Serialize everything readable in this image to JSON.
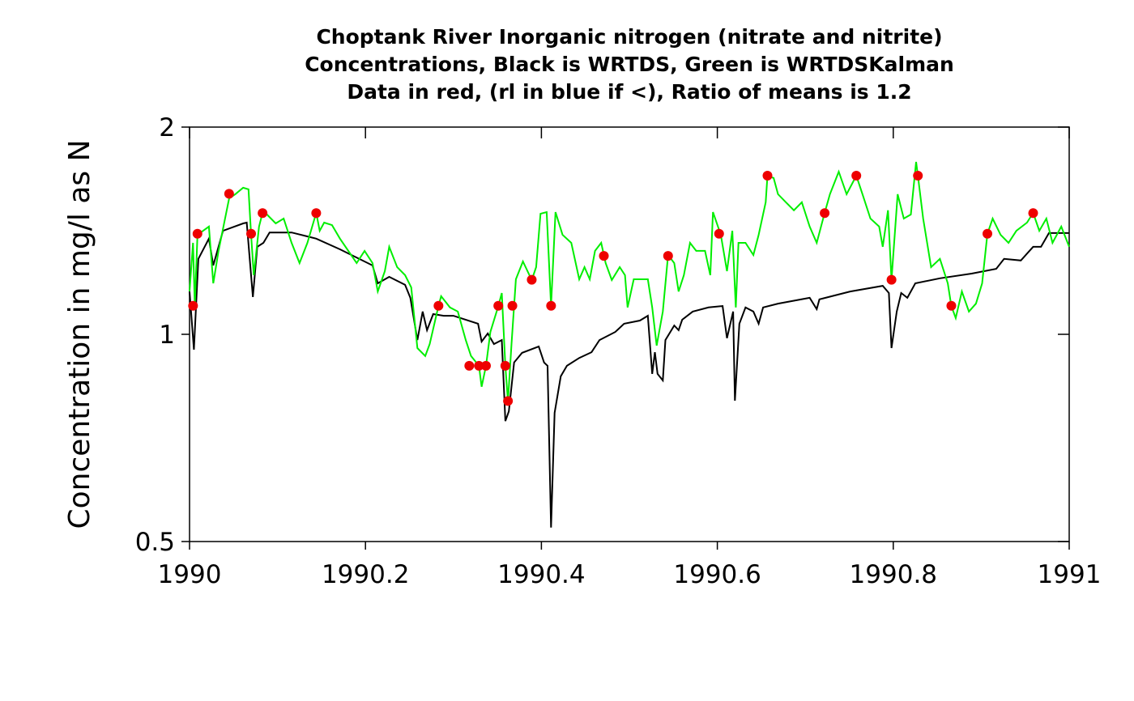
{
  "chart_data": {
    "type": "line",
    "title": [
      "Choptank River Inorganic nitrogen (nitrate and nitrite)",
      "Concentrations, Black is WRTDS, Green is WRTDSKalman",
      "Data in red, (rl in blue if <), Ratio of means is 1.2"
    ],
    "y_label": "Concentration in mg/l as N",
    "xlim": [
      1990,
      1991
    ],
    "xticks": [
      1990,
      1990.2,
      1990.4,
      1990.6,
      1990.8,
      1991
    ],
    "ylim": [
      0.5,
      2
    ],
    "yticks": [
      0.5,
      1,
      2
    ],
    "log_y": true,
    "series": [
      {
        "type": "line",
        "color": "#000000",
        "x": [
          1990.0,
          1990.005,
          1990.01,
          1990.022,
          1990.027,
          1990.038,
          1990.061,
          1990.065,
          1990.072,
          1990.077,
          1990.084,
          1990.091,
          1990.116,
          1990.144,
          1990.171,
          1990.208,
          1990.214,
          1990.227,
          1990.245,
          1990.251,
          1990.259,
          1990.265,
          1990.27,
          1990.277,
          1990.289,
          1990.3,
          1990.328,
          1990.332,
          1990.339,
          1990.346,
          1990.355,
          1990.359,
          1990.363,
          1990.369,
          1990.378,
          1990.397,
          1990.403,
          1990.407,
          1990.411,
          1990.415,
          1990.422,
          1990.429,
          1990.443,
          1990.457,
          1990.466,
          1990.484,
          1990.494,
          1990.512,
          1990.521,
          1990.526,
          1990.529,
          1990.532,
          1990.538,
          1990.541,
          1990.551,
          1990.556,
          1990.56,
          1990.572,
          1990.59,
          1990.606,
          1990.611,
          1990.618,
          1990.62,
          1990.625,
          1990.632,
          1990.641,
          1990.647,
          1990.652,
          1990.669,
          1990.705,
          1990.713,
          1990.716,
          1990.751,
          1990.788,
          1990.795,
          1990.798,
          1990.804,
          1990.809,
          1990.816,
          1990.825,
          1990.853,
          1990.889,
          1990.917,
          1990.926,
          1990.945,
          1990.959,
          1990.968,
          1990.977,
          1991.0
        ],
        "values": [
          1.154,
          0.95,
          1.287,
          1.377,
          1.259,
          1.414,
          1.449,
          1.453,
          1.133,
          1.34,
          1.358,
          1.406,
          1.406,
          1.377,
          1.329,
          1.259,
          1.186,
          1.212,
          1.18,
          1.13,
          0.981,
          1.079,
          1.014,
          1.07,
          1.064,
          1.064,
          1.036,
          0.976,
          1.003,
          0.968,
          0.981,
          0.748,
          0.773,
          0.91,
          0.94,
          0.96,
          0.91,
          0.9,
          0.524,
          0.769,
          0.869,
          0.9,
          0.924,
          0.942,
          0.981,
          1.008,
          1.036,
          1.047,
          1.064,
          0.876,
          0.942,
          0.876,
          0.857,
          0.981,
          1.03,
          1.014,
          1.05,
          1.079,
          1.094,
          1.099,
          0.987,
          1.079,
          0.801,
          1.036,
          1.094,
          1.079,
          1.036,
          1.094,
          1.108,
          1.13,
          1.088,
          1.124,
          1.154,
          1.176,
          1.148,
          0.955,
          1.079,
          1.148,
          1.13,
          1.186,
          1.206,
          1.225,
          1.245,
          1.287,
          1.28,
          1.34,
          1.34,
          1.403,
          1.403
        ]
      },
      {
        "type": "line",
        "color": "#00ee00",
        "x": [
          1990.0,
          1990.004,
          1990.006,
          1990.009,
          1990.022,
          1990.027,
          1990.033,
          1990.045,
          1990.052,
          1990.061,
          1990.067,
          1990.07,
          1990.073,
          1990.079,
          1990.083,
          1990.088,
          1990.098,
          1990.107,
          1990.116,
          1990.125,
          1990.134,
          1990.144,
          1990.148,
          1990.153,
          1990.162,
          1990.171,
          1990.19,
          1990.199,
          1990.208,
          1990.214,
          1990.222,
          1990.227,
          1990.236,
          1990.245,
          1990.252,
          1990.259,
          1990.268,
          1990.273,
          1990.283,
          1990.286,
          1990.296,
          1990.305,
          1990.314,
          1990.32,
          1990.329,
          1990.332,
          1990.337,
          1990.342,
          1990.351,
          1990.355,
          1990.359,
          1990.362,
          1990.366,
          1990.371,
          1990.379,
          1990.389,
          1990.394,
          1990.399,
          1990.406,
          1990.411,
          1990.416,
          1990.424,
          1990.434,
          1990.443,
          1990.449,
          1990.455,
          1990.461,
          1990.468,
          1990.473,
          1990.48,
          1990.489,
          1990.495,
          1990.498,
          1990.505,
          1990.521,
          1990.526,
          1990.531,
          1990.538,
          1990.544,
          1990.551,
          1990.556,
          1990.562,
          1990.569,
          1990.576,
          1990.586,
          1990.592,
          1990.595,
          1990.604,
          1990.611,
          1990.617,
          1990.621,
          1990.624,
          1990.632,
          1990.641,
          1990.647,
          1990.655,
          1990.657,
          1990.664,
          1990.669,
          1990.678,
          1990.687,
          1990.696,
          1990.705,
          1990.713,
          1990.722,
          1990.728,
          1990.738,
          1990.747,
          1990.758,
          1990.765,
          1990.774,
          1990.784,
          1990.788,
          1990.794,
          1990.798,
          1990.805,
          1990.812,
          1990.82,
          1990.826,
          1990.828,
          1990.834,
          1990.843,
          1990.853,
          1990.862,
          1990.866,
          1990.871,
          1990.878,
          1990.886,
          1990.894,
          1990.901,
          1990.907,
          1990.913,
          1990.922,
          1990.931,
          1990.94,
          1990.952,
          1990.959,
          1990.966,
          1990.974,
          1990.981,
          1990.991,
          1991.0
        ],
        "values": [
          1.154,
          1.358,
          1.099,
          1.395,
          1.434,
          1.186,
          1.322,
          1.576,
          1.598,
          1.633,
          1.624,
          1.395,
          1.219,
          1.434,
          1.501,
          1.493,
          1.449,
          1.473,
          1.358,
          1.269,
          1.358,
          1.501,
          1.414,
          1.453,
          1.441,
          1.377,
          1.269,
          1.322,
          1.269,
          1.154,
          1.235,
          1.34,
          1.252,
          1.219,
          1.17,
          0.955,
          0.93,
          0.968,
          1.099,
          1.136,
          1.094,
          1.079,
          0.981,
          0.93,
          0.9,
          0.839,
          0.9,
          1.008,
          1.099,
          1.148,
          0.9,
          0.799,
          0.968,
          1.202,
          1.276,
          1.199,
          1.252,
          1.497,
          1.505,
          1.099,
          1.505,
          1.395,
          1.358,
          1.202,
          1.252,
          1.202,
          1.322,
          1.358,
          1.269,
          1.199,
          1.252,
          1.219,
          1.094,
          1.202,
          1.202,
          1.094,
          0.963,
          1.079,
          1.304,
          1.269,
          1.154,
          1.219,
          1.358,
          1.322,
          1.322,
          1.219,
          1.505,
          1.395,
          1.235,
          1.414,
          1.094,
          1.358,
          1.358,
          1.304,
          1.395,
          1.555,
          1.7,
          1.687,
          1.598,
          1.555,
          1.514,
          1.555,
          1.434,
          1.358,
          1.501,
          1.598,
          1.723,
          1.598,
          1.7,
          1.598,
          1.473,
          1.434,
          1.34,
          1.514,
          1.199,
          1.598,
          1.473,
          1.493,
          1.78,
          1.7,
          1.473,
          1.252,
          1.287,
          1.186,
          1.099,
          1.056,
          1.154,
          1.079,
          1.108,
          1.186,
          1.399,
          1.473,
          1.395,
          1.358,
          1.414,
          1.453,
          1.501,
          1.414,
          1.473,
          1.358,
          1.434,
          1.34
        ]
      },
      {
        "type": "scatter",
        "color": "#ee0000",
        "x": [
          1990.004,
          1990.009,
          1990.045,
          1990.07,
          1990.083,
          1990.144,
          1990.283,
          1990.318,
          1990.329,
          1990.337,
          1990.351,
          1990.359,
          1990.362,
          1990.367,
          1990.389,
          1990.411,
          1990.471,
          1990.544,
          1990.602,
          1990.657,
          1990.722,
          1990.758,
          1990.798,
          1990.828,
          1990.866,
          1990.907,
          1990.959
        ],
        "values": [
          1.1,
          1.4,
          1.6,
          1.4,
          1.5,
          1.5,
          1.1,
          0.9,
          0.9,
          0.9,
          1.1,
          0.9,
          0.8,
          1.1,
          1.2,
          1.1,
          1.3,
          1.3,
          1.4,
          1.7,
          1.5,
          1.7,
          1.2,
          1.7,
          1.1,
          1.4,
          1.5
        ]
      }
    ]
  }
}
